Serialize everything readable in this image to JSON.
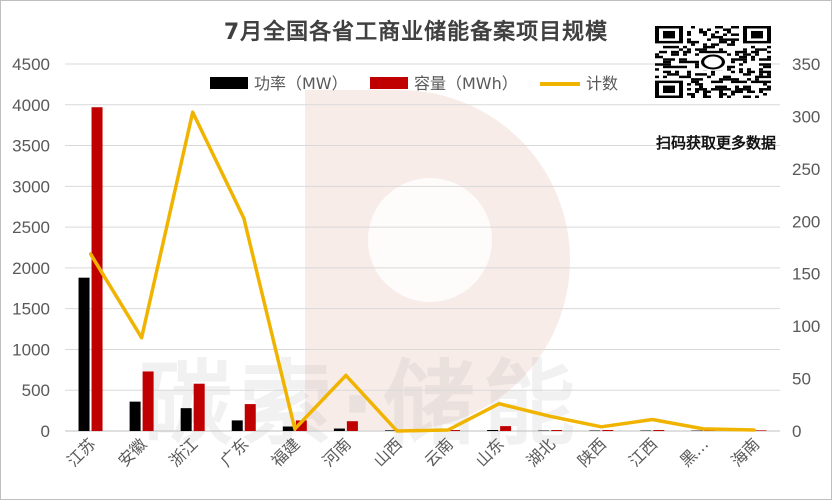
{
  "watermark": {
    "text": "碳索·储能",
    "logo_color": "#e8c9c3"
  },
  "qr": {
    "caption": "扫码获取更多数据"
  },
  "colors": {
    "power": "#000000",
    "capacity": "#c00000",
    "count": "#f0b400",
    "axis_text": "#595959",
    "grid": "#d9d9d9"
  },
  "chart_data": {
    "type": "bar",
    "title": "7月全国各省工商业储能备案项目规模",
    "categories": [
      "江苏",
      "安徽",
      "浙江",
      "广东",
      "福建",
      "河南",
      "山西",
      "云南",
      "山东",
      "湖北",
      "陕西",
      "江西",
      "黑…",
      "海南"
    ],
    "series": [
      {
        "name": "功率（MW）",
        "type": "bar",
        "axis": "left",
        "color": "#000000",
        "values": [
          1880,
          360,
          280,
          130,
          55,
          30,
          8,
          6,
          12,
          6,
          6,
          6,
          5,
          4
        ]
      },
      {
        "name": "容量（MWh）",
        "type": "bar",
        "axis": "left",
        "color": "#c00000",
        "values": [
          3970,
          730,
          580,
          330,
          130,
          120,
          15,
          12,
          60,
          12,
          12,
          12,
          10,
          8
        ]
      },
      {
        "name": "计数",
        "type": "line",
        "axis": "right",
        "color": "#f0b400",
        "values": [
          169,
          89,
          304,
          203,
          2,
          53,
          0,
          1,
          26,
          14,
          4,
          11,
          2,
          1
        ]
      }
    ],
    "y_left": {
      "range": [
        0,
        4500
      ],
      "ticks": [
        0,
        500,
        1000,
        1500,
        2000,
        2500,
        3000,
        3500,
        4000,
        4500
      ]
    },
    "y_right": {
      "range": [
        0,
        350
      ],
      "ticks": [
        0,
        50,
        100,
        150,
        200,
        250,
        300,
        350
      ]
    },
    "legend_position": "top",
    "grid": true
  }
}
